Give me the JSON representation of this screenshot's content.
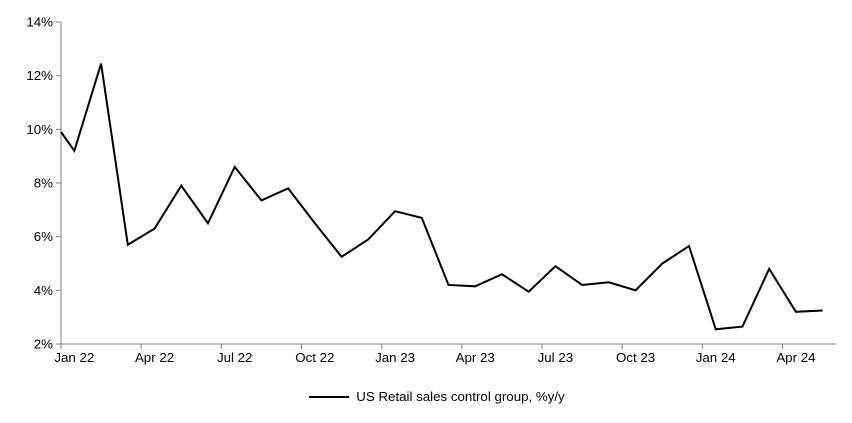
{
  "chart_data": {
    "type": "line",
    "title": "",
    "legend_label": "US Retail sales control group, %y/y",
    "legend_position": "bottom-center",
    "grid": false,
    "categories": [
      "Jan 22",
      "Feb 22",
      "Mar 22",
      "Apr 22",
      "May 22",
      "Jun 22",
      "Jul 22",
      "Aug 22",
      "Sep 22",
      "Oct 22",
      "Nov 22",
      "Dec 22",
      "Jan 23",
      "Feb 23",
      "Mar 23",
      "Apr 23",
      "May 23",
      "Jun 23",
      "Jul 23",
      "Aug 23",
      "Sep 23",
      "Oct 23",
      "Nov 23",
      "Dec 23",
      "Jan 24",
      "Feb 24",
      "Mar 24",
      "Apr 24",
      "May 24"
    ],
    "series": [
      {
        "name": "US Retail sales control group, %y/y",
        "color": "#000000",
        "values": [
          9.2,
          12.45,
          5.7,
          6.3,
          7.9,
          6.5,
          8.6,
          7.35,
          7.8,
          6.5,
          5.25,
          5.9,
          6.95,
          6.7,
          4.2,
          4.15,
          4.6,
          3.95,
          4.9,
          4.2,
          4.3,
          4.0,
          5.0,
          5.65,
          2.55,
          2.65,
          4.8,
          3.2,
          3.25
        ],
        "lead_in_visible_start_value": 9.9
      }
    ],
    "x_axis": {
      "tick_labels": [
        "Jan 22",
        "Apr 22",
        "Jul 22",
        "Oct 22",
        "Jan 23",
        "Apr 23",
        "Jul 23",
        "Oct 23",
        "Jan 24",
        "Apr 24"
      ],
      "label_every_n_months": 3
    },
    "y_axis": {
      "tick_labels": [
        "2%",
        "4%",
        "6%",
        "8%",
        "10%",
        "12%",
        "14%"
      ],
      "min": 2,
      "max": 14,
      "step": 2,
      "unit": "%"
    },
    "colors": {
      "series": "#000000",
      "axis": "#7f7f7f",
      "label_text": "#000000",
      "background": "#ffffff"
    }
  }
}
